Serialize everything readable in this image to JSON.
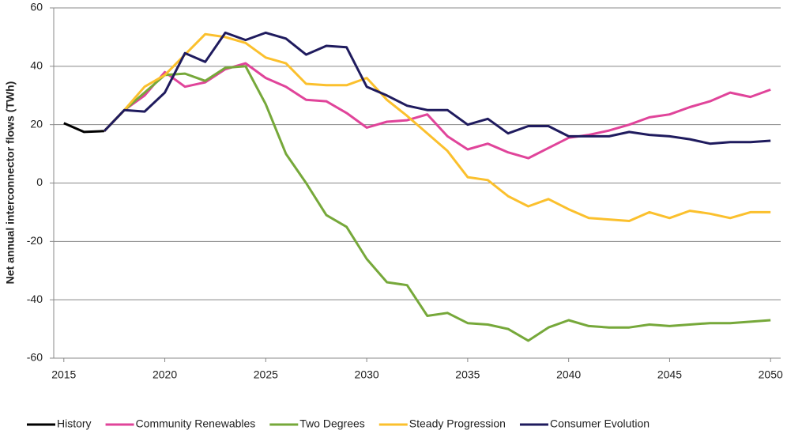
{
  "chart_data": {
    "type": "line",
    "y_label": "Net annual interconnector flows (TWh)",
    "x": [
      2015,
      2016,
      2017,
      2018,
      2019,
      2020,
      2021,
      2022,
      2023,
      2024,
      2025,
      2026,
      2027,
      2028,
      2029,
      2030,
      2031,
      2032,
      2033,
      2034,
      2035,
      2036,
      2037,
      2038,
      2039,
      2040,
      2041,
      2042,
      2043,
      2044,
      2045,
      2046,
      2047,
      2048,
      2049,
      2050
    ],
    "series": [
      {
        "name": "History",
        "color": "#000000",
        "values": [
          20.5,
          17.5,
          17.8,
          null,
          null,
          null,
          null,
          null,
          null,
          null,
          null,
          null,
          null,
          null,
          null,
          null,
          null,
          null,
          null,
          null,
          null,
          null,
          null,
          null,
          null,
          null,
          null,
          null,
          null,
          null,
          null,
          null,
          null,
          null,
          null,
          null
        ]
      },
      {
        "name": "Community Renewables",
        "color": "#e0449a",
        "values": [
          null,
          null,
          17.8,
          25,
          30,
          38,
          33,
          34.5,
          39,
          41,
          36,
          33,
          28.5,
          28,
          24,
          19,
          21,
          21.5,
          23.5,
          16,
          11.5,
          13.5,
          10.5,
          8.5,
          12,
          15.5,
          16.5,
          18,
          20,
          22.5,
          23.5,
          26,
          28,
          31,
          29.5,
          32
        ]
      },
      {
        "name": "Two Degrees",
        "color": "#76a83a",
        "values": [
          null,
          null,
          17.8,
          25,
          31,
          37,
          37.5,
          35,
          39.5,
          40,
          27,
          10,
          0,
          -11,
          -15,
          -26,
          -34,
          -35,
          -45.5,
          -44.5,
          -48,
          -48.5,
          -50,
          -54,
          -49.5,
          -47,
          -49,
          -49.5,
          -49.5,
          -48.5,
          -49,
          -48.5,
          -48,
          -48,
          -47.5,
          -47
        ]
      },
      {
        "name": "Steady Progression",
        "color": "#fbc02d",
        "values": [
          null,
          null,
          17.8,
          25,
          33,
          37,
          44,
          51,
          50,
          48,
          43,
          41,
          34,
          33.5,
          33.5,
          36,
          28.5,
          23,
          17,
          11,
          2,
          1,
          -4.5,
          -8,
          -5.5,
          -9,
          -12,
          -12.5,
          -13,
          -10,
          -12,
          -9.5,
          -10.5,
          -12,
          -10,
          -10
        ]
      },
      {
        "name": "Consumer Evolution",
        "color": "#1f1b5e",
        "values": [
          null,
          null,
          17.8,
          25,
          24.5,
          31,
          44.5,
          41.5,
          51.5,
          49,
          51.5,
          49.5,
          44,
          47,
          46.5,
          33,
          30,
          26.5,
          25,
          25,
          20,
          22,
          17,
          19.5,
          19.5,
          16,
          16,
          16,
          17.5,
          16.5,
          16,
          15,
          13.5,
          14,
          14,
          14.5
        ]
      }
    ],
    "xlim": [
      2014.5,
      2050.5
    ],
    "xticks": [
      2015,
      2020,
      2025,
      2030,
      2035,
      2040,
      2045,
      2050
    ],
    "ylim": [
      -60,
      60
    ],
    "yticks": [
      -60,
      -40,
      -20,
      0,
      20,
      40,
      60
    ],
    "grid": true,
    "legend": "bottom"
  }
}
